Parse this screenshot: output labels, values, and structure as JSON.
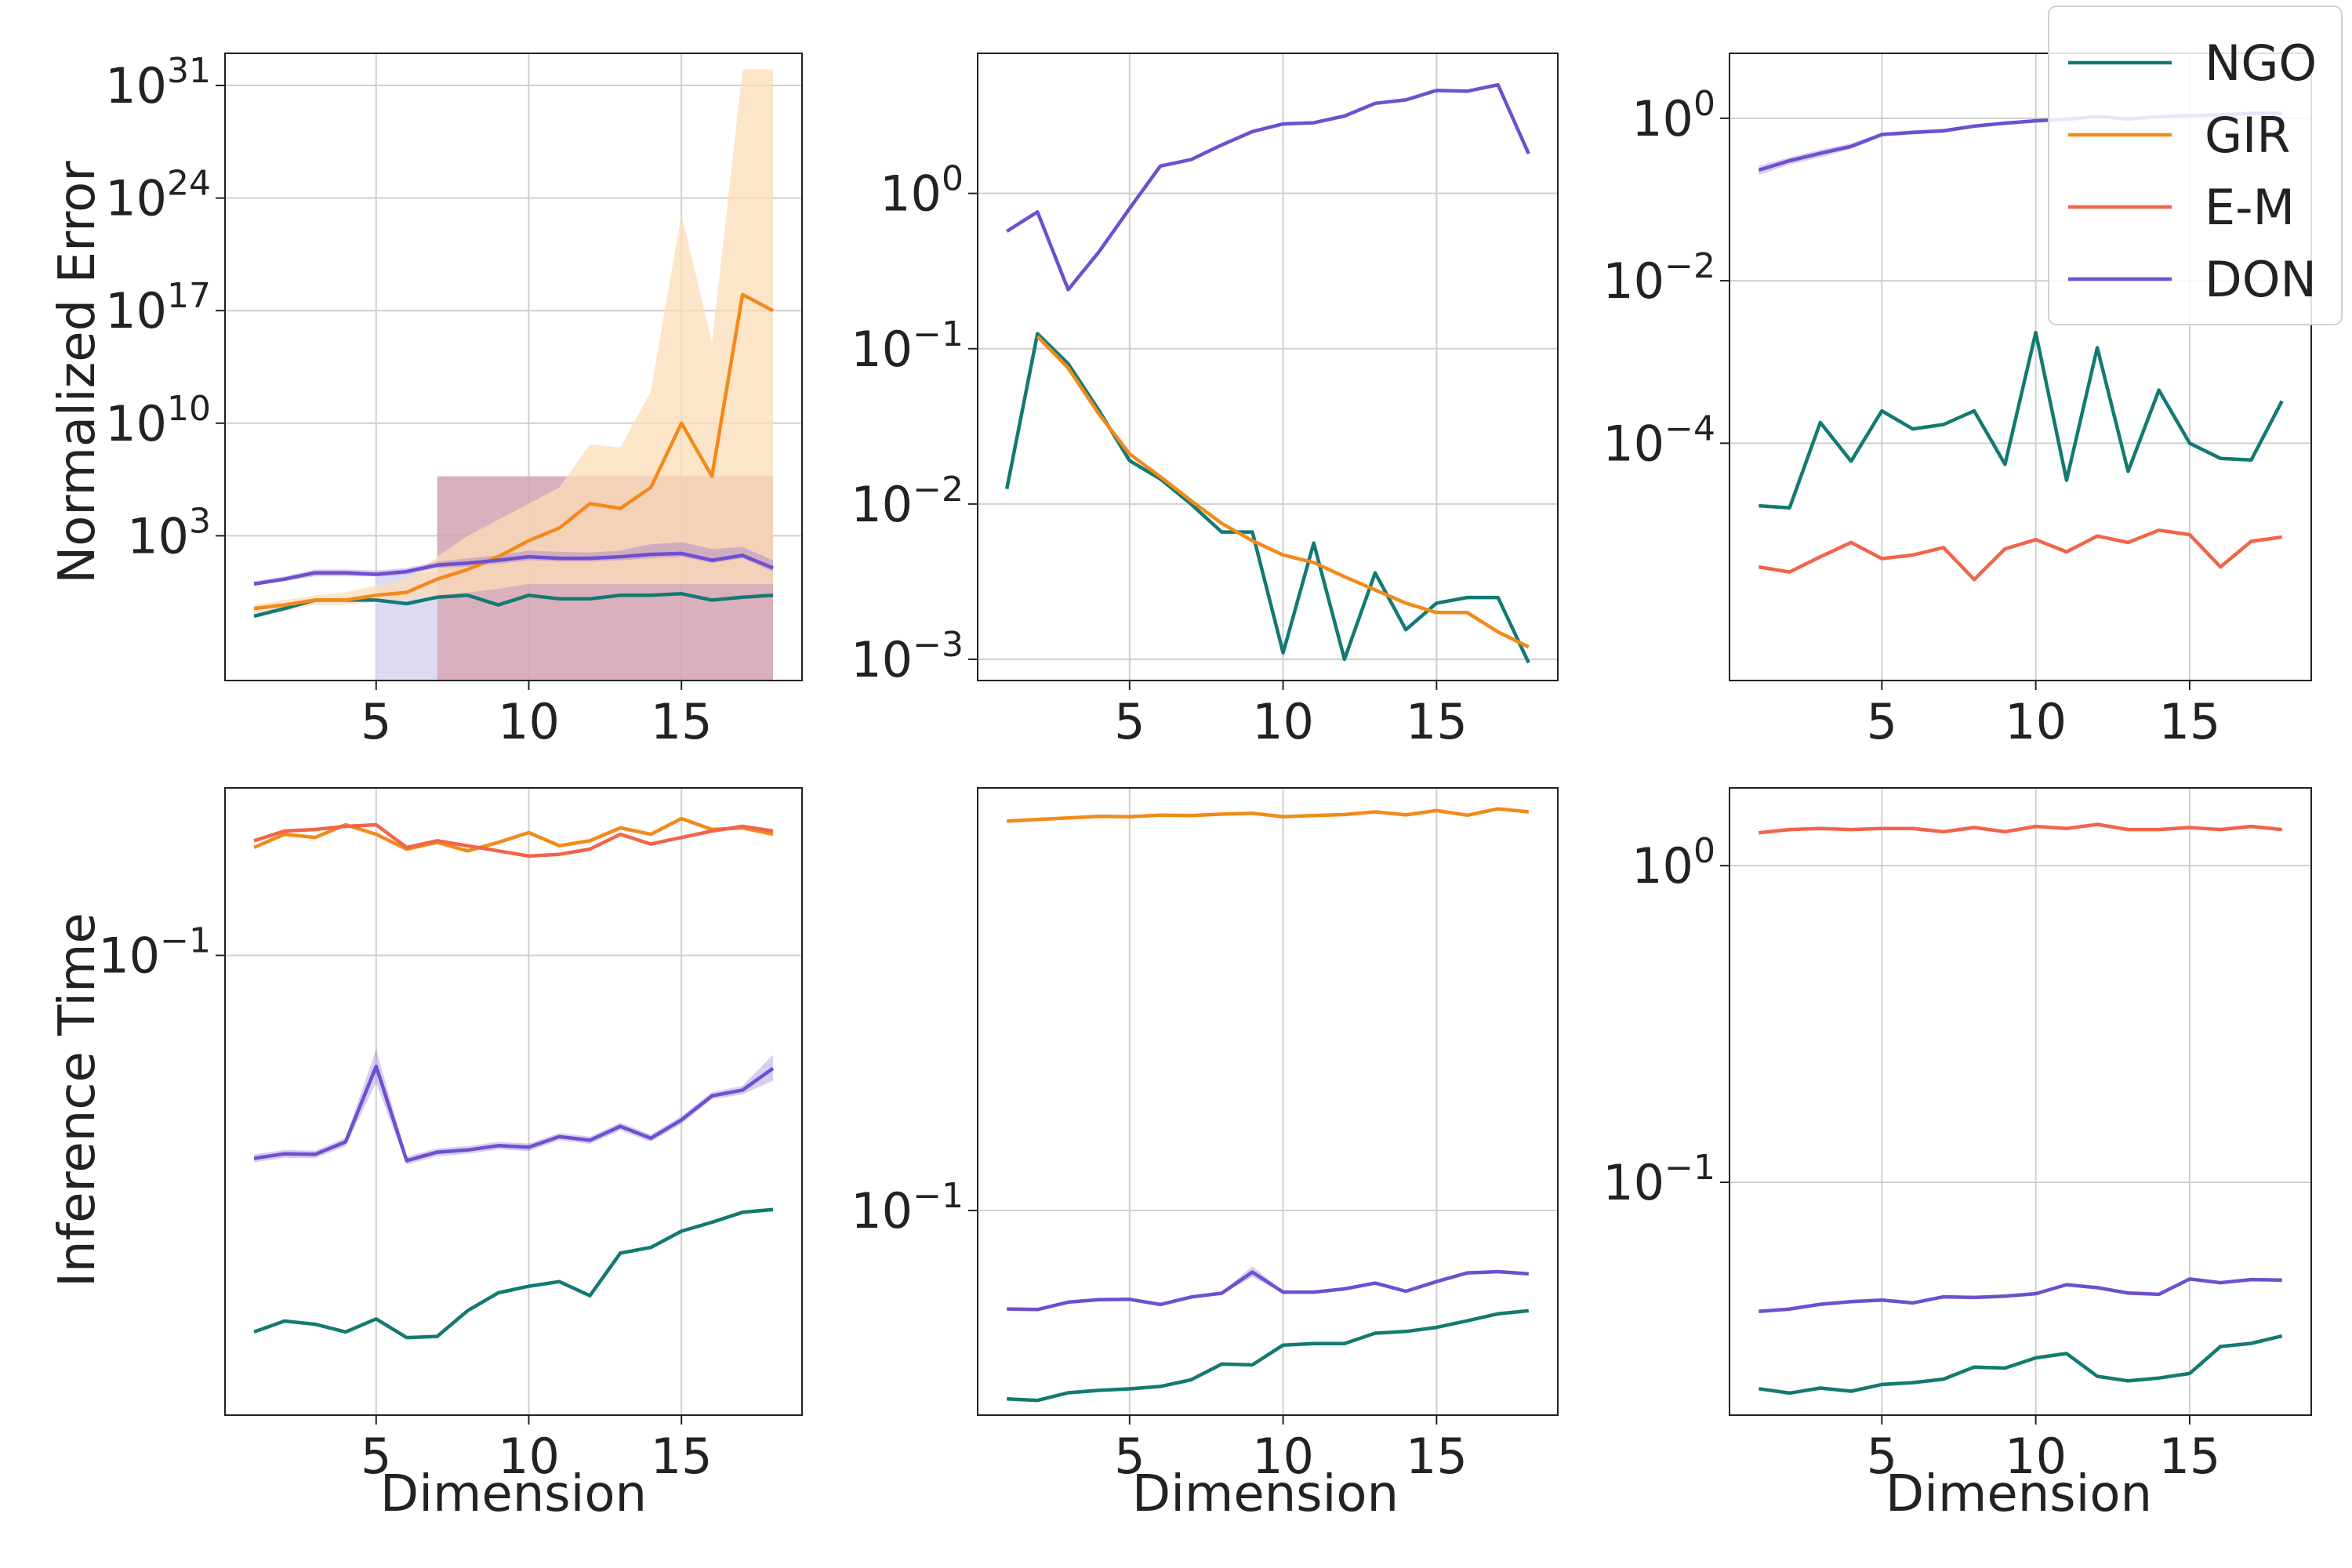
{
  "figure": {
    "ylabel_top": "Normalized Error",
    "ylabel_bottom": "Inference Time",
    "xlabel": "Dimension",
    "legend": [
      {
        "name": "NGO",
        "color": "#127a72"
      },
      {
        "name": "GIR",
        "color": "#f28a1a"
      },
      {
        "name": "E-M",
        "color": "#f2644a"
      },
      {
        "name": "DON",
        "color": "#6e4fcf"
      }
    ]
  },
  "chart_data": [
    {
      "type": "line",
      "yscale": "log",
      "grid": true,
      "x": [
        1,
        2,
        3,
        4,
        5,
        6,
        7,
        8,
        9,
        10,
        11,
        12,
        13,
        14,
        15,
        16,
        17,
        18
      ],
      "xlim": [
        0.05,
        18.95
      ],
      "xticks": [
        5,
        10,
        15
      ],
      "xtick_labels": [
        "5",
        "10",
        "15"
      ],
      "ylim": [
        1e-06,
        1e+33
      ],
      "yticks": [
        1000.0,
        10000000000.0,
        1e+17,
        1e+24,
        1e+31
      ],
      "ytick_labels": [
        [
          "10",
          "3"
        ],
        [
          "10",
          "10"
        ],
        [
          "10",
          "17"
        ],
        [
          "10",
          "24"
        ],
        [
          "10",
          "31"
        ]
      ],
      "ylabel": "Normalized Error",
      "xlabel": "",
      "series": [
        {
          "name": "NGO",
          "values": [
            0.01,
            0.03,
            0.1,
            0.1,
            0.1,
            0.06,
            0.15,
            0.2,
            0.05,
            0.2,
            0.12,
            0.12,
            0.2,
            0.2,
            0.25,
            0.1,
            0.15,
            0.2
          ],
          "band": [
            {
              "x1": 7,
              "x2": 18,
              "lo": 1e-06,
              "hi": 5000000.0,
              "color": "#d3a2b0",
              "opacity": 0.85
            }
          ]
        },
        {
          "name": "GIR",
          "values": [
            0.03,
            0.05,
            0.1,
            0.1,
            0.2,
            0.3,
            2,
            8,
            50,
            500,
            3000,
            100000.0,
            50000.0,
            1000000.0,
            10000000000.0,
            5000000.0,
            1e+18,
            1e+17
          ],
          "band_lo": [
            0.01,
            0.02,
            0.05,
            0.05,
            0.08,
            0.1,
            0.2,
            0.3,
            0.5,
            1,
            1,
            1,
            1,
            1,
            1,
            1,
            1,
            1
          ],
          "band_hi": [
            0.05,
            0.1,
            0.2,
            0.3,
            0.8,
            2,
            50,
            1000.0,
            10000.0,
            100000.0,
            1000000.0,
            500000000.0,
            300000000.0,
            1000000000000.0,
            1e+23,
            1000000000000000.0,
            1e+32,
            1e+32
          ],
          "band_color": "#fcdcb8"
        },
        {
          "name": "DON",
          "values": [
            1,
            2,
            5,
            5,
            4,
            6,
            15,
            20,
            30,
            50,
            40,
            40,
            50,
            70,
            80,
            30,
            60,
            10
          ],
          "band_lo": [
            0.8,
            1.5,
            3,
            3,
            3,
            4,
            10,
            12,
            18,
            30,
            25,
            25,
            30,
            40,
            50,
            20,
            40,
            6
          ],
          "band_hi": [
            1.5,
            3,
            8,
            8,
            7,
            10,
            25,
            40,
            60,
            120,
            100,
            90,
            120,
            300,
            400,
            150,
            200,
            30
          ],
          "band": [
            {
              "x1": 5,
              "x2": 7,
              "lo": 1e-06,
              "hi": 5,
              "color": "#d9d6f3",
              "opacity": 0.9
            }
          ]
        }
      ]
    },
    {
      "type": "line",
      "yscale": "log",
      "grid": true,
      "x": [
        1,
        2,
        3,
        4,
        5,
        6,
        7,
        8,
        9,
        10,
        11,
        12,
        13,
        14,
        15,
        16,
        17,
        18
      ],
      "xlim": [
        0.05,
        18.95
      ],
      "xticks": [
        5,
        10,
        15
      ],
      "xtick_labels": [
        "5",
        "10",
        "15"
      ],
      "ylim": [
        0.00073,
        7.98
      ],
      "yticks": [
        0.001,
        0.01,
        0.1,
        1
      ],
      "ytick_labels": [
        [
          "10",
          "−3"
        ],
        [
          "10",
          "−2"
        ],
        [
          "10",
          "−1"
        ],
        [
          "10",
          "0"
        ]
      ],
      "ylabel": "",
      "xlabel": "",
      "series": [
        {
          "name": "NGO",
          "values": [
            0.0125,
            0.125,
            0.08,
            0.04,
            0.019,
            0.0145,
            0.01,
            0.0066,
            0.0066,
            0.0011,
            0.0056,
            0.001,
            0.0036,
            0.00155,
            0.0023,
            0.0025,
            0.0025,
            0.00095
          ]
        },
        {
          "name": "GIR",
          "values": [
            null,
            0.12,
            0.075,
            0.038,
            0.021,
            0.015,
            0.0105,
            0.0075,
            0.0058,
            0.0047,
            0.0042,
            0.0034,
            0.0028,
            0.0023,
            0.002,
            0.002,
            0.0015,
            0.0012
          ]
        },
        {
          "name": "DON",
          "values": [
            0.57,
            0.76,
            0.24,
            0.42,
            0.8,
            1.5,
            1.65,
            2.05,
            2.5,
            2.8,
            2.85,
            3.15,
            3.8,
            4,
            4.6,
            4.55,
            5,
            1.8
          ]
        }
      ]
    },
    {
      "type": "line",
      "yscale": "log",
      "grid": true,
      "x": [
        1,
        2,
        3,
        4,
        5,
        6,
        7,
        8,
        9,
        10,
        11,
        12,
        13,
        14,
        15,
        16,
        17,
        18
      ],
      "xlim": [
        0.05,
        18.95
      ],
      "xticks": [
        5,
        10,
        15
      ],
      "xtick_labels": [
        "5",
        "10",
        "15"
      ],
      "ylim": [
        1.2e-07,
        6.3
      ],
      "yticks": [
        0.0001,
        0.01,
        1
      ],
      "ytick_labels": [
        [
          "10",
          "−4"
        ],
        [
          "10",
          "−2"
        ],
        [
          "10",
          "0"
        ]
      ],
      "ylabel": "",
      "xlabel": "",
      "series": [
        {
          "name": "NGO",
          "values": [
            1.7e-05,
            1.6e-05,
            0.00018,
            6e-05,
            0.00025,
            0.00015,
            0.00017,
            0.00025,
            5.5e-05,
            0.0023,
            3.5e-05,
            0.0015,
            4.5e-05,
            0.00045,
            0.0001,
            6.5e-05,
            6.2e-05,
            0.00033
          ]
        },
        {
          "name": "E-M",
          "values": [
            3e-06,
            2.6e-06,
            4e-06,
            6e-06,
            3.8e-06,
            4.2e-06,
            5.2e-06,
            2.1e-06,
            5e-06,
            6.5e-06,
            4.6e-06,
            7.2e-06,
            6e-06,
            8.5e-06,
            7.5e-06,
            3e-06,
            6.2e-06,
            7e-06
          ]
        },
        {
          "name": "DON",
          "values": [
            0.23,
            0.3,
            0.37,
            0.45,
            0.63,
            0.67,
            0.7,
            0.8,
            0.87,
            0.93,
            0.97,
            1.05,
            0.98,
            1.05,
            1.08,
            1.1,
            1.15,
            1.15
          ],
          "band_lo": [
            0.2,
            0.27,
            0.33,
            0.42,
            0.6,
            0.63,
            0.67,
            0.77,
            0.84,
            0.9,
            0.94,
            1.02,
            0.95,
            1.02,
            1.05,
            1.07,
            1.1,
            1.1
          ],
          "band_hi": [
            0.26,
            0.33,
            0.41,
            0.49,
            0.66,
            0.71,
            0.74,
            0.84,
            0.9,
            0.96,
            1,
            1.08,
            1.01,
            1.08,
            1.11,
            1.13,
            1.2,
            1.2
          ]
        }
      ]
    },
    {
      "type": "line",
      "yscale": "log",
      "grid": true,
      "x": [
        1,
        2,
        3,
        4,
        5,
        6,
        7,
        8,
        9,
        10,
        11,
        12,
        13,
        14,
        15,
        16,
        17,
        18
      ],
      "xlim": [
        0.05,
        18.95
      ],
      "xticks": [
        5,
        10,
        15
      ],
      "xtick_labels": [
        "5",
        "10",
        "15"
      ],
      "ylim": [
        0.0168,
        0.1915
      ],
      "yticks": [
        0.1
      ],
      "ytick_labels": [
        [
          "10",
          "−1"
        ]
      ],
      "ylabel": "Inference Time",
      "xlabel": "Dimension",
      "series": [
        {
          "name": "NGO",
          "values": [
            0.0232,
            0.0242,
            0.0239,
            0.0232,
            0.0244,
            0.0227,
            0.0228,
            0.0252,
            0.027,
            0.0277,
            0.0282,
            0.0267,
            0.0315,
            0.0322,
            0.0343,
            0.0355,
            0.0369,
            0.0373
          ]
        },
        {
          "name": "GIR",
          "values": [
            0.152,
            0.16,
            0.158,
            0.166,
            0.16,
            0.151,
            0.155,
            0.15,
            0.155,
            0.161,
            0.153,
            0.156,
            0.164,
            0.16,
            0.17,
            0.163,
            0.164,
            0.16
          ]
        },
        {
          "name": "E-M",
          "values": [
            0.156,
            0.162,
            0.163,
            0.165,
            0.166,
            0.152,
            0.156,
            0.153,
            0.15,
            0.147,
            0.148,
            0.151,
            0.16,
            0.154,
            0.158,
            0.162,
            0.165,
            0.162
          ]
        },
        {
          "name": "DON",
          "values": [
            0.0455,
            0.0463,
            0.0462,
            0.0485,
            0.065,
            0.0451,
            0.0466,
            0.047,
            0.0478,
            0.0475,
            0.0495,
            0.0488,
            0.0515,
            0.0492,
            0.0528,
            0.058,
            0.0593,
            0.0645
          ],
          "band_lo": [
            0.0448,
            0.0456,
            0.0455,
            0.0477,
            0.061,
            0.0444,
            0.0459,
            0.0463,
            0.0471,
            0.0468,
            0.0488,
            0.0481,
            0.0507,
            0.0485,
            0.052,
            0.0572,
            0.0583,
            0.0615
          ],
          "band_hi": [
            0.0462,
            0.047,
            0.0469,
            0.0493,
            0.0695,
            0.0458,
            0.0473,
            0.0477,
            0.0485,
            0.0482,
            0.0502,
            0.0495,
            0.0523,
            0.0499,
            0.0536,
            0.0588,
            0.0603,
            0.068
          ]
        }
      ]
    },
    {
      "type": "line",
      "yscale": "log",
      "grid": true,
      "x": [
        1,
        2,
        3,
        4,
        5,
        6,
        7,
        8,
        9,
        10,
        11,
        12,
        13,
        14,
        15,
        16,
        17,
        18
      ],
      "xlim": [
        0.05,
        18.95
      ],
      "xticks": [
        5,
        10,
        15
      ],
      "xtick_labels": [
        "5",
        "10",
        "15"
      ],
      "ylim": [
        0.0292,
        1.27
      ],
      "yticks": [
        0.1
      ],
      "ytick_labels": [
        [
          "10",
          "−1"
        ]
      ],
      "ylabel": "",
      "xlabel": "Dimension",
      "series": [
        {
          "name": "NGO",
          "values": [
            0.0322,
            0.0319,
            0.0334,
            0.0339,
            0.0342,
            0.0347,
            0.0361,
            0.0397,
            0.0395,
            0.0445,
            0.0449,
            0.0449,
            0.0478,
            0.0483,
            0.0495,
            0.0515,
            0.0537,
            0.0547
          ]
        },
        {
          "name": "GIR",
          "values": [
            1.04,
            1.05,
            1.06,
            1.07,
            1.068,
            1.078,
            1.075,
            1.085,
            1.09,
            1.068,
            1.075,
            1.082,
            1.1,
            1.08,
            1.108,
            1.078,
            1.12,
            1.1
          ]
        },
        {
          "name": "DON",
          "values": [
            0.0553,
            0.0551,
            0.0576,
            0.0585,
            0.0586,
            0.0568,
            0.0594,
            0.0608,
            0.069,
            0.0612,
            0.0612,
            0.0624,
            0.0646,
            0.0615,
            0.0652,
            0.0687,
            0.0692,
            0.0683
          ],
          "band_lo": [
            0.0549,
            0.0547,
            0.0572,
            0.0581,
            0.0582,
            0.0564,
            0.059,
            0.0604,
            0.067,
            0.0608,
            0.0608,
            0.062,
            0.0642,
            0.0611,
            0.0648,
            0.0683,
            0.0688,
            0.0679
          ],
          "band_hi": [
            0.0557,
            0.0555,
            0.058,
            0.0589,
            0.059,
            0.0572,
            0.0598,
            0.0612,
            0.0715,
            0.0616,
            0.0616,
            0.0628,
            0.065,
            0.0619,
            0.0656,
            0.0691,
            0.0696,
            0.0687
          ]
        }
      ]
    },
    {
      "type": "line",
      "yscale": "log",
      "grid": true,
      "x": [
        1,
        2,
        3,
        4,
        5,
        6,
        7,
        8,
        9,
        10,
        11,
        12,
        13,
        14,
        15,
        16,
        17,
        18
      ],
      "xlim": [
        0.05,
        18.95
      ],
      "xticks": [
        5,
        10,
        15
      ],
      "xtick_labels": [
        "5",
        "10",
        "15"
      ],
      "ylim": [
        0.0184,
        1.76
      ],
      "yticks": [
        0.1,
        1
      ],
      "ytick_labels": [
        [
          "10",
          "−1"
        ],
        [
          "10",
          "0"
        ]
      ],
      "ylabel": "",
      "xlabel": "Dimension",
      "series": [
        {
          "name": "NGO",
          "values": [
            0.0223,
            0.0216,
            0.0224,
            0.0219,
            0.023,
            0.0233,
            0.0239,
            0.0261,
            0.0259,
            0.0279,
            0.0288,
            0.0244,
            0.0236,
            0.0241,
            0.0249,
            0.0303,
            0.031,
            0.0327
          ]
        },
        {
          "name": "E-M",
          "values": [
            1.27,
            1.3,
            1.31,
            1.3,
            1.31,
            1.31,
            1.28,
            1.32,
            1.28,
            1.33,
            1.31,
            1.35,
            1.3,
            1.3,
            1.32,
            1.3,
            1.33,
            1.3
          ]
        },
        {
          "name": "DON",
          "values": [
            0.0391,
            0.0398,
            0.0412,
            0.042,
            0.0425,
            0.0416,
            0.0435,
            0.0433,
            0.0437,
            0.0445,
            0.0475,
            0.0465,
            0.0447,
            0.0443,
            0.0495,
            0.0482,
            0.0493,
            0.0491
          ]
        }
      ]
    }
  ]
}
